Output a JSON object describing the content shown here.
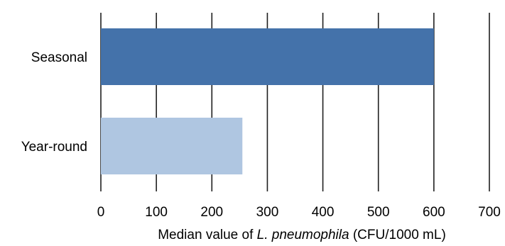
{
  "chart_data": {
    "type": "bar",
    "orientation": "horizontal",
    "categories": [
      "Seasonal",
      "Year-round"
    ],
    "values": [
      600,
      255
    ],
    "bar_colors": [
      "#4472AA",
      "#AFC6E1"
    ],
    "xlim": [
      0,
      700
    ],
    "xticks": [
      0,
      100,
      200,
      300,
      400,
      500,
      600,
      700
    ],
    "xlabel": {
      "prefix": "Median value of ",
      "italic": "L. pneumophila",
      "suffix": " (CFU/1000 mL)"
    },
    "grid": "vertical",
    "legend": "none"
  }
}
